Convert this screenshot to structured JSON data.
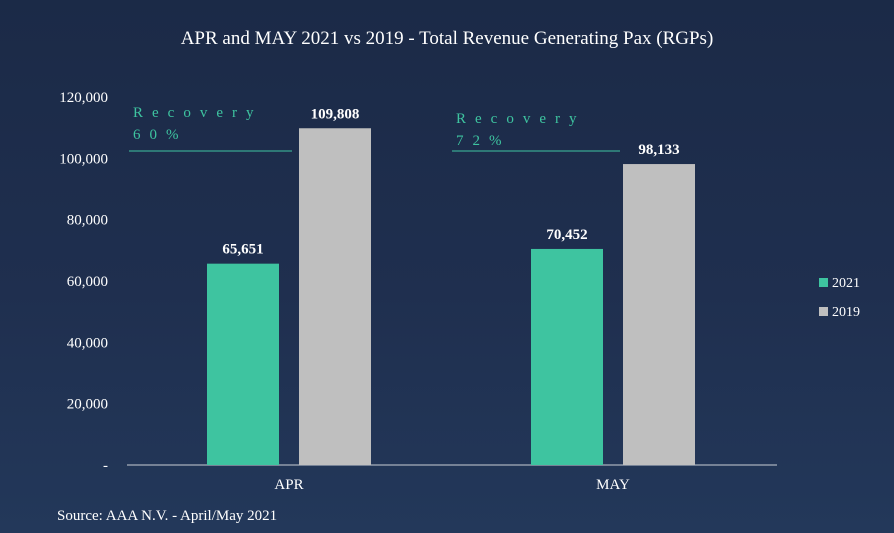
{
  "chart_data": {
    "type": "bar",
    "title": "APR and MAY 2021 vs 2019 - Total Revenue Generating Pax (RGPs)",
    "categories": [
      "APR",
      "MAY"
    ],
    "series": [
      {
        "name": "2021",
        "values": [
          65651,
          70452
        ],
        "labels": [
          "65,651",
          "70,452"
        ],
        "color": "#3ec4a0"
      },
      {
        "name": "2019",
        "values": [
          109808,
          98133
        ],
        "labels": [
          "109,808",
          "98,133"
        ],
        "color": "#bfbfbf"
      }
    ],
    "ylim": [
      0,
      120000
    ],
    "yticks": [
      0,
      20000,
      40000,
      60000,
      80000,
      100000,
      120000
    ],
    "ytick_labels": [
      "-",
      "20,000",
      "40,000",
      "60,000",
      "80,000",
      "100,000",
      "120,000"
    ],
    "annotations": [
      {
        "line1": "Recovery",
        "line2": "60%",
        "category": "APR"
      },
      {
        "line1": "Recovery",
        "line2": "72%",
        "category": "MAY"
      }
    ],
    "annotation_color": "#3ec4a0",
    "legend_position": "right",
    "grid": false,
    "source": "Source: AAA N.V. - April/May 2021"
  }
}
